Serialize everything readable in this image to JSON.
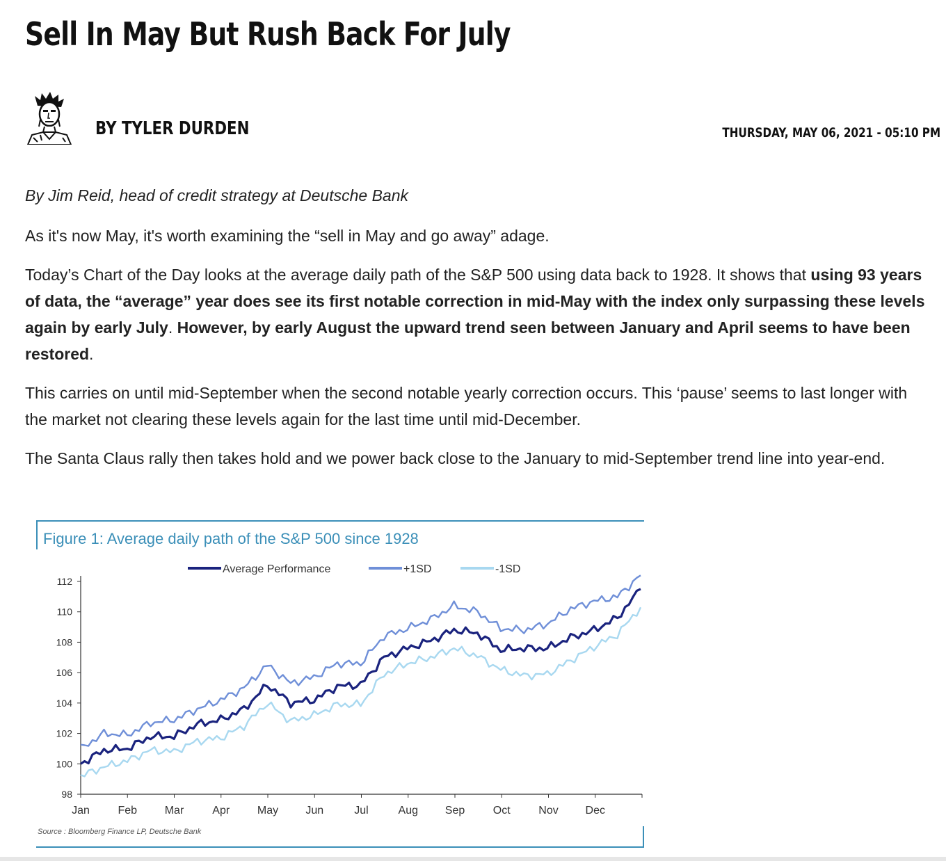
{
  "article": {
    "title": "Sell In May But Rush Back For July",
    "byline": "BY TYLER DURDEN",
    "date": "THURSDAY, MAY 06, 2021 - 05:10 PM",
    "intro": "By Jim Reid, head of credit strategy at Deutsche Bank",
    "p1": "As it's now May, it's worth examining the “sell in May and go away” adage.",
    "p2_a": "Today’s Chart of the Day looks at the average daily path of the S&P 500 using data back to 1928. It shows that ",
    "p2_b": "using 93 years of data, the “average” year does see its first notable correction in mid-May with the index only surpassing these levels again by early July",
    "p2_c": ". ",
    "p2_d": "However, by early August the upward trend seen between January and April seems to have been restored",
    "p2_e": ".",
    "p3": "This carries on until mid-September when the second notable yearly correction occurs. This ‘pause’ seems to last longer with the market not clearing these levels again for the last time until mid-December.",
    "p4": "The Santa Claus rally then takes hold and we power back close to the January to mid-September trend line into year-end."
  },
  "figure": {
    "title": "Figure 1: Average daily path of the S&P 500 since 1928",
    "source": "Source : Bloomberg Finance LP, Deutsche Bank"
  },
  "chart_data": {
    "type": "line",
    "title": "Figure 1: Average daily path of the S&P 500 since 1928",
    "x": [
      "Jan",
      "Jan",
      "Feb",
      "Feb",
      "Mar",
      "Mar",
      "Apr",
      "Apr",
      "May",
      "May",
      "Jun",
      "Jun",
      "Jul",
      "Jul",
      "Aug",
      "Aug",
      "Sep",
      "Sep",
      "Oct",
      "Oct",
      "Nov",
      "Nov",
      "Dec",
      "Dec",
      "Dec"
    ],
    "categories": [
      "Jan",
      "Feb",
      "Mar",
      "Apr",
      "May",
      "Jun",
      "Jul",
      "Aug",
      "Sep",
      "Oct",
      "Nov",
      "Dec"
    ],
    "ylim": [
      98,
      112
    ],
    "yticks": [
      98,
      100,
      102,
      104,
      106,
      108,
      110,
      112
    ],
    "legend_position": "top",
    "series": [
      {
        "name": "Average Performance",
        "color": "#1a237e",
        "values": [
          100.0,
          100.9,
          101.0,
          101.8,
          101.8,
          102.6,
          102.9,
          103.6,
          105.2,
          104.0,
          104.2,
          105.1,
          105.2,
          107.0,
          107.6,
          108.1,
          108.8,
          108.6,
          107.5,
          107.6,
          107.6,
          108.3,
          108.8,
          109.6,
          111.5
        ]
      },
      {
        "name": "+1SD",
        "color": "#6f8fd8",
        "values": [
          101.0,
          102.0,
          101.9,
          102.7,
          102.9,
          103.6,
          104.2,
          105.0,
          106.5,
          105.3,
          105.7,
          106.6,
          106.6,
          108.4,
          108.9,
          109.5,
          110.4,
          110.0,
          108.9,
          108.8,
          109.2,
          110.2,
          110.7,
          111.0,
          112.4
        ]
      },
      {
        "name": "-1SD",
        "color": "#a8d8f0",
        "values": [
          99.2,
          99.8,
          100.2,
          100.9,
          100.8,
          101.5,
          101.7,
          102.5,
          104.0,
          102.8,
          103.2,
          103.9,
          103.9,
          105.9,
          106.6,
          107.0,
          107.6,
          107.1,
          106.2,
          105.8,
          105.9,
          106.8,
          107.7,
          108.5,
          110.3
        ]
      }
    ]
  },
  "icons": {
    "avatar": "author-avatar-sketch"
  }
}
